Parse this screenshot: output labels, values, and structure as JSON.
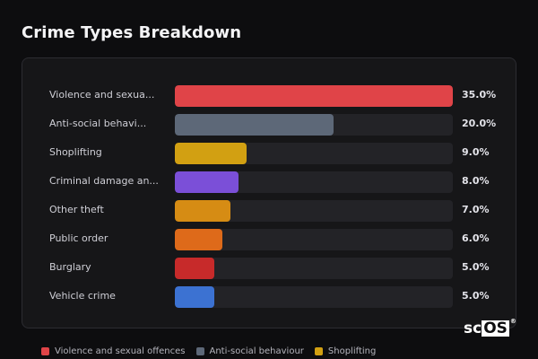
{
  "title": "Crime Types Breakdown",
  "rows": [
    {
      "label": "Violence and sexua...",
      "percent": 35.0,
      "percent_text": "35.0%",
      "color": "#e04448"
    },
    {
      "label": "Anti-social behavi...",
      "percent": 20.0,
      "percent_text": "20.0%",
      "color": "#5d6878"
    },
    {
      "label": "Shoplifting",
      "percent": 9.0,
      "percent_text": "9.0%",
      "color": "#d2a012"
    },
    {
      "label": "Criminal damage an...",
      "percent": 8.0,
      "percent_text": "8.0%",
      "color": "#7b4fd8"
    },
    {
      "label": "Other theft",
      "percent": 7.0,
      "percent_text": "7.0%",
      "color": "#d68c14"
    },
    {
      "label": "Public order",
      "percent": 6.0,
      "percent_text": "6.0%",
      "color": "#de6a1a"
    },
    {
      "label": "Burglary",
      "percent": 5.0,
      "percent_text": "5.0%",
      "color": "#c72a2a"
    },
    {
      "label": "Vehicle crime",
      "percent": 5.0,
      "percent_text": "5.0%",
      "color": "#3c72d2"
    }
  ],
  "legend": [
    {
      "label": "Violence and sexual offences",
      "color": "#e04448"
    },
    {
      "label": "Anti-social behaviour",
      "color": "#5d6878"
    },
    {
      "label": "Shoplifting",
      "color": "#d2a012"
    }
  ],
  "logo": {
    "prefix": "sc",
    "boxed": "OS",
    "mark": "®"
  }
}
